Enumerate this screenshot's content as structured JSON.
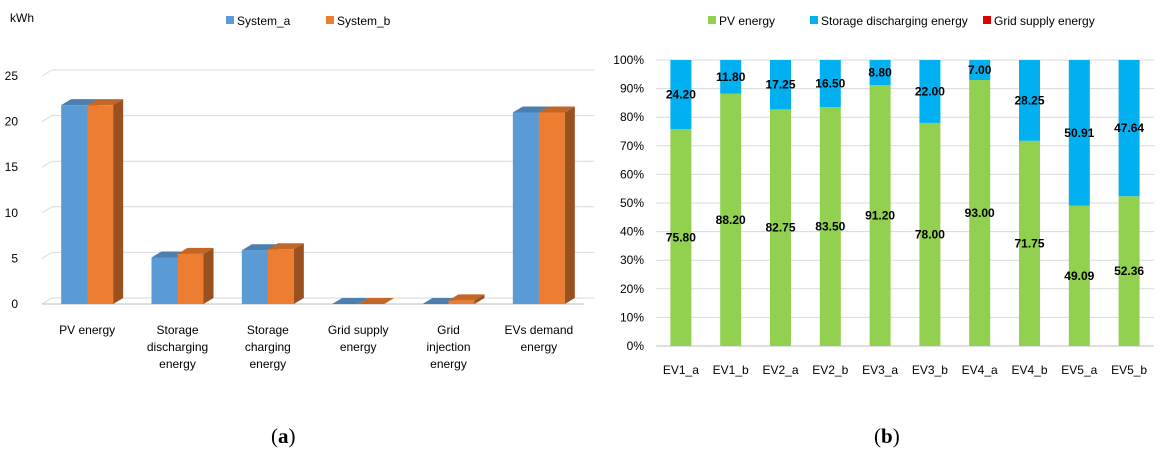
{
  "colors": {
    "system_a": "#5b9bd5",
    "system_b": "#ed7d31",
    "pv": "#92d050",
    "storage": "#00b0f0",
    "grid": "#e00000",
    "gridline": "#d9d9d9",
    "axis": "#bfbfbf"
  },
  "panel_labels": [
    {
      "open": "(",
      "letter": "a",
      "close": ")"
    },
    {
      "open": "(",
      "letter": "b",
      "close": ")"
    }
  ],
  "chart_data": [
    {
      "type": "bar",
      "ylabel": "kWh",
      "ylim": [
        0,
        25
      ],
      "yticks": [
        0,
        5,
        10,
        15,
        20,
        25
      ],
      "grid": true,
      "legend_position": "top-center",
      "categories": [
        [
          "PV energy"
        ],
        [
          "Storage",
          "discharging",
          "energy"
        ],
        [
          "Storage",
          "charging",
          "energy"
        ],
        [
          "Grid supply",
          "energy"
        ],
        [
          "Grid",
          "injection",
          "energy"
        ],
        [
          "EVs demand",
          "energy"
        ]
      ],
      "series": [
        {
          "name": "System_a",
          "color_key": "system_a",
          "values": [
            21.8,
            5.1,
            5.9,
            0.0,
            0.0,
            21.0
          ]
        },
        {
          "name": "System_b",
          "color_key": "system_b",
          "values": [
            21.8,
            5.5,
            6.0,
            0.0,
            0.4,
            21.0
          ]
        }
      ]
    },
    {
      "type": "bar",
      "stacked": true,
      "percent": true,
      "ylim": [
        0,
        100
      ],
      "yticks": [
        "0%",
        "10%",
        "20%",
        "30%",
        "40%",
        "50%",
        "60%",
        "70%",
        "80%",
        "90%",
        "100%"
      ],
      "grid": true,
      "legend_position": "top-center",
      "categories": [
        "EV1_a",
        "EV1_b",
        "EV2_a",
        "EV2_b",
        "EV3_a",
        "EV3_b",
        "EV4_a",
        "EV4_b",
        "EV5_a",
        "EV5_b"
      ],
      "series": [
        {
          "name": "PV energy",
          "color_key": "pv",
          "values": [
            75.8,
            88.2,
            82.75,
            83.5,
            91.2,
            78.0,
            93.0,
            71.75,
            49.09,
            52.36
          ],
          "labels": [
            "75.80",
            "88.20",
            "82.75",
            "83.50",
            "91.20",
            "78.00",
            "93.00",
            "71.75",
            "49.09",
            "52.36"
          ]
        },
        {
          "name": "Storage discharging energy",
          "color_key": "storage",
          "values": [
            24.2,
            11.8,
            17.25,
            16.5,
            8.8,
            22.0,
            7.0,
            28.25,
            50.91,
            47.64
          ],
          "labels": [
            "24.20",
            "11.80",
            "17.25",
            "16.50",
            "8.80",
            "22.00",
            "7.00",
            "28.25",
            "50.91",
            "47.64"
          ]
        },
        {
          "name": "Grid supply energy",
          "color_key": "grid",
          "values": [
            0,
            0,
            0,
            0,
            0,
            0,
            0,
            0,
            0,
            0
          ]
        }
      ]
    }
  ]
}
